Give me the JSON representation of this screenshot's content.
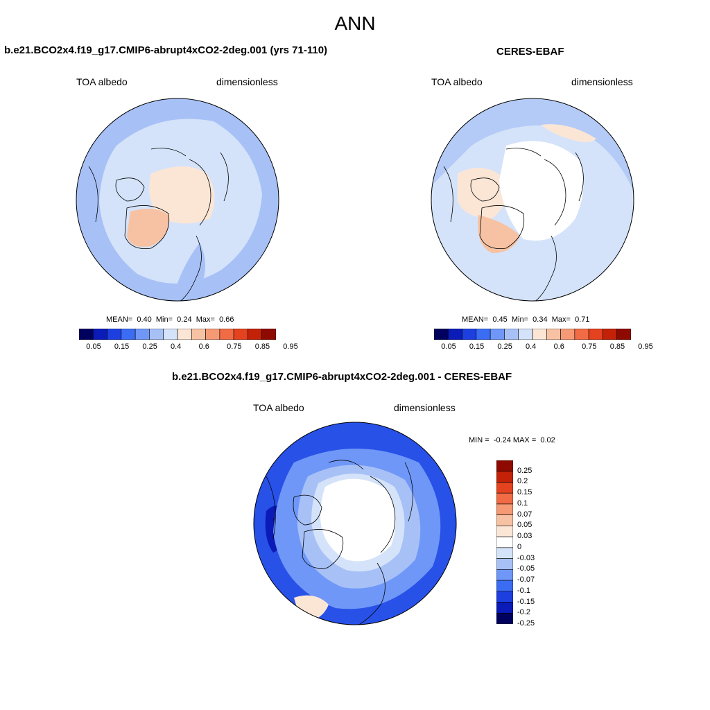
{
  "figure": {
    "title": "ANN"
  },
  "left_panel": {
    "title": "b.e21.BCO2x4.f19_g17.CMIP6-abrupt4xCO2-2deg.001 (yrs 71-110)",
    "variable": "TOA albedo",
    "units": "dimensionless",
    "stats": {
      "mean_label": "MEAN=",
      "mean": "0.40",
      "min_label": "Min=",
      "min": "0.24",
      "max_label": "Max=",
      "max": "0.66"
    }
  },
  "right_panel": {
    "title": "CERES-EBAF",
    "variable": "TOA albedo",
    "units": "dimensionless",
    "stats": {
      "mean_label": "MEAN=",
      "mean": "0.45",
      "min_label": "Min=",
      "min": "0.34",
      "max_label": "Max=",
      "max": "0.71"
    }
  },
  "diff_panel": {
    "title": "b.e21.BCO2x4.f19_g17.CMIP6-abrupt4xCO2-2deg.001 - CERES-EBAF",
    "variable": "TOA albedo",
    "units": "dimensionless",
    "stats": {
      "min_label": "MIN =",
      "min": "-0.24",
      "max_label": "MAX =",
      "max": "0.02"
    }
  },
  "abs_colorbar": {
    "labels": [
      "0.05",
      "0.15",
      "0.25",
      "0.4",
      "0.6",
      "0.75",
      "0.85",
      "0.95"
    ],
    "colors": [
      "#00005f",
      "#0b1bb8",
      "#1d3fe0",
      "#3b6cf4",
      "#6f97f7",
      "#a7c1f7",
      "#d4e3f9",
      "#fbe6d6",
      "#f7c2a3",
      "#f59a74",
      "#f16b45",
      "#e5421f",
      "#c32208",
      "#8e0a00"
    ]
  },
  "diff_colorbar": {
    "labels": [
      "0.25",
      "0.2",
      "0.15",
      "0.1",
      "0.07",
      "0.05",
      "0.03",
      "0",
      "-0.03",
      "-0.05",
      "-0.07",
      "-0.1",
      "-0.15",
      "-0.2",
      "-0.25"
    ],
    "colors": [
      "#8e0a00",
      "#c32208",
      "#e5421f",
      "#f16b45",
      "#f59a74",
      "#f7c2a3",
      "#fbe6d6",
      "#ffffff",
      "#d4e3f9",
      "#a7c1f7",
      "#6f97f7",
      "#3b6cf4",
      "#1d3fe0",
      "#0b1bb8",
      "#00005f"
    ]
  }
}
